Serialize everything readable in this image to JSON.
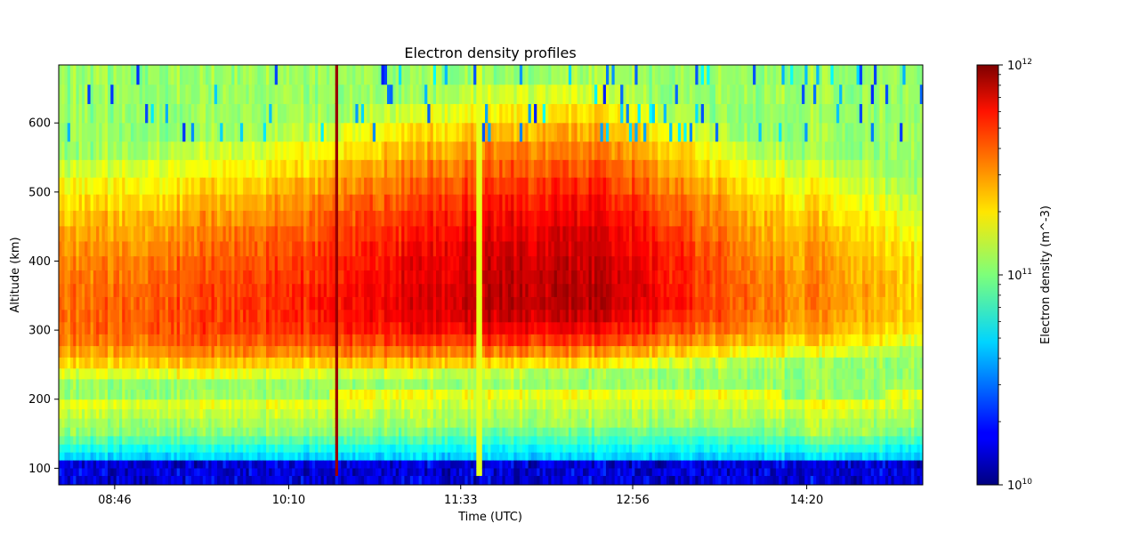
{
  "chart_data": {
    "type": "heatmap",
    "title": "Electron density profiles",
    "xlabel": "Time (UTC)",
    "ylabel": "Altitude (km)",
    "colorbar_label": "Electron density (m^-3)",
    "colormap": "jet",
    "color_scale": "log",
    "color_range": [
      10000000000.0,
      1000000000000.0
    ],
    "colorbar_ticks": [
      {
        "value": 10000000000.0,
        "base": "10",
        "exp": "10"
      },
      {
        "value": 100000000000.0,
        "base": "10",
        "exp": "11"
      },
      {
        "value": 1000000000000.0,
        "base": "10",
        "exp": "12"
      }
    ],
    "x_ticks": [
      "08:46",
      "10:10",
      "11:33",
      "12:56",
      "14:20"
    ],
    "x_tick_minutes": [
      526,
      610,
      693,
      776,
      860
    ],
    "x_range_minutes": [
      499,
      916
    ],
    "y_ticks": [
      100,
      200,
      300,
      400,
      500,
      600
    ],
    "y_range": [
      76,
      684
    ],
    "altitude_bins_km": [
      84,
      95,
      106,
      118,
      129,
      141,
      153,
      166,
      179,
      193,
      207,
      222,
      237,
      253,
      269,
      286,
      303,
      321,
      339,
      358,
      377,
      397,
      418,
      440,
      462,
      485,
      509,
      534,
      560,
      587,
      614,
      642,
      670
    ],
    "profile_times_min": [
      510,
      560,
      610,
      660,
      710,
      760,
      800,
      840,
      880,
      910
    ],
    "peak_log10_density": [
      11.55,
      11.62,
      11.66,
      11.78,
      11.88,
      11.88,
      11.7,
      11.52,
      11.45,
      11.35
    ],
    "peak_altitude_km": [
      310,
      310,
      320,
      330,
      340,
      345,
      340,
      330,
      330,
      330
    ],
    "bottomside_edge_km": [
      205,
      205,
      205,
      210,
      215,
      215,
      215,
      210,
      195,
      215
    ],
    "notable_columns": [
      {
        "time_min": 633,
        "log10_density": 11.95
      },
      {
        "time_min": 702,
        "log10_density": 11.2
      }
    ]
  }
}
